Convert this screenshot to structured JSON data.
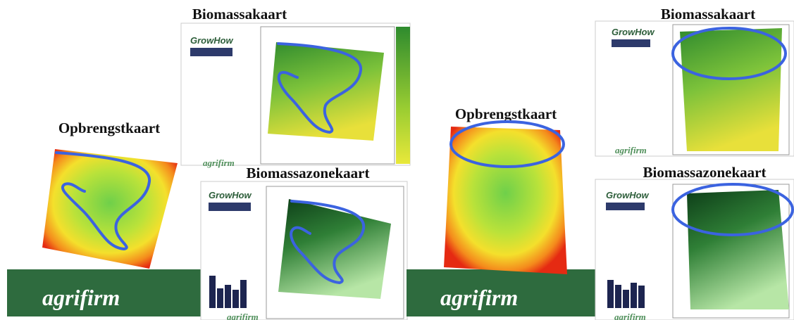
{
  "panels": [
    {
      "yield_title": "Opbrengstkaart",
      "biomass_title": "Biomassakaart",
      "zone_title": "Biomassazonekaart",
      "logo": "agrifirm",
      "biomass_doc": {
        "brand": "GrowHow",
        "footer": "agrifirm"
      },
      "zone_doc": {
        "brand": "GrowHow",
        "footer": "agrifirm"
      }
    },
    {
      "yield_title": "Opbrengstkaart",
      "biomass_title": "Biomassakaart",
      "zone_title": "Biomassazonekaart",
      "logo": "agrifirm",
      "biomass_doc": {
        "brand": "GrowHow",
        "footer": "agrifirm"
      },
      "zone_doc": {
        "brand": "GrowHow",
        "footer": "agrifirm"
      }
    }
  ]
}
